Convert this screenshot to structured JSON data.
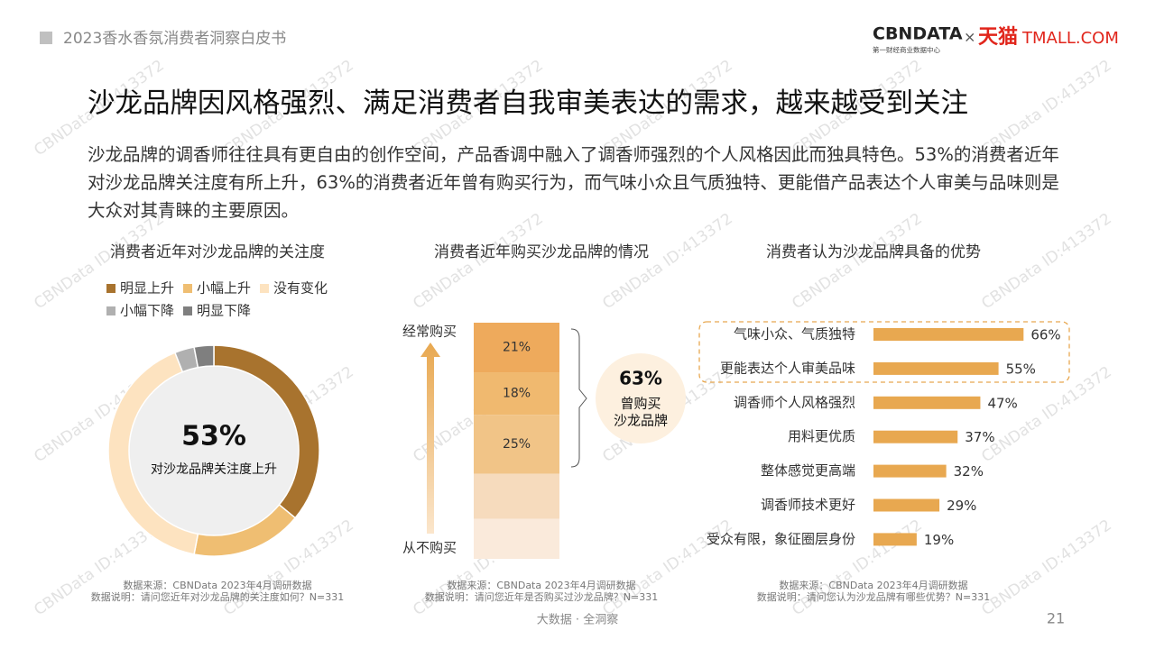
{
  "header": {
    "report": "2023香水香氛消费者洞察白皮书",
    "logo": "CBNDATA",
    "logo_sub": "第一财经商业数据中心",
    "times": "×",
    "partner": "天猫",
    "partner_en": "TMALL.COM"
  },
  "title": "沙龙品牌因风格强烈、满足消费者自我审美表达的需求，越来越受到关注",
  "body": "沙龙品牌的调香师往往具有更自由的创作空间，产品香调中融入了调香师强烈的个人风格因此而独具特色。53%的消费者近年对沙龙品牌关注度有所上升，63%的消费者近年曾有购买行为，而气味小众且气质独特、更能借产品表达个人审美与品味则是大众对其青睐的主要原因。",
  "watermark": "CBNData ID:413372",
  "chart_data": [
    {
      "type": "donut",
      "title": "消费者近年对沙龙品牌的关注度",
      "categories": [
        "明显上升",
        "小幅上升",
        "没有变化",
        "小幅下降",
        "明显下降"
      ],
      "values": [
        36,
        17,
        41,
        3,
        3
      ],
      "colors": [
        "#a8732e",
        "#efbe72",
        "#fde3c0",
        "#b0b0b0",
        "#7f7f7f"
      ],
      "center_label": "53%",
      "center_text": "对沙龙品牌关注度上升",
      "source": "数据来源：CBNData 2023年4月调研数据",
      "note": "数据说明：请问您近年对沙龙品牌的关注度如何？N=331"
    },
    {
      "type": "stacked-column",
      "title": "消费者近年购买沙龙品牌的情况",
      "values": [
        21,
        18,
        25,
        19,
        17
      ],
      "value_labels": [
        "21%",
        "18%",
        "25%",
        null,
        null
      ],
      "colors": [
        "#eeaa5c",
        "#f0b96f",
        "#f1c487",
        "#f6dbbd",
        "#faeadb"
      ],
      "ylim": [
        0,
        100
      ],
      "top_label": "经常购买",
      "bottom_label": "从不购买",
      "callout_value": "63%",
      "callout_text": [
        "曾购买",
        "沙龙品牌"
      ],
      "source": "数据来源：CBNData 2023年4月调研数据",
      "note": "数据说明：请问您近年是否购买过沙龙品牌？N=331"
    },
    {
      "type": "hbar",
      "title": "消费者认为沙龙品牌具备的优势",
      "categories": [
        "气味小众、气质独特",
        "更能表达个人审美品味",
        "调香师个人风格强烈",
        "用料更优质",
        "整体感觉更高端",
        "调香师技术更好",
        "受众有限，象征圈层身份"
      ],
      "values": [
        66,
        55,
        47,
        37,
        32,
        29,
        19
      ],
      "value_labels": [
        "66%",
        "55%",
        "47%",
        "37%",
        "32%",
        "29%",
        "19%"
      ],
      "color": "#e8a850",
      "xlim": [
        0,
        100
      ],
      "source": "数据来源：CBNData 2023年4月调研数据",
      "note": "数据说明：请问您认为沙龙品牌有哪些优势？N=331"
    }
  ],
  "footer": {
    "slogan": "大数据 · 全洞察",
    "page": "21"
  }
}
